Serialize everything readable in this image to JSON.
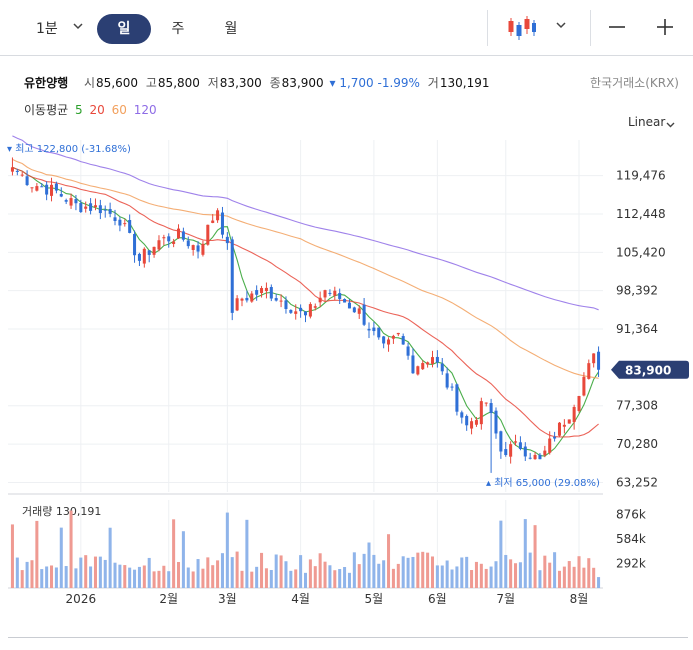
{
  "toolbar": {
    "tabs": [
      "1분",
      "일",
      "주",
      "월"
    ],
    "active_tab": "일",
    "icons": [
      "chevron-down-icon",
      "candlestick-icon",
      "zoom-out-icon",
      "zoom-in-icon"
    ]
  },
  "stock": {
    "name": "유한양행",
    "open_label": "시",
    "open": "85,600",
    "high_label": "고",
    "high": "85,800",
    "low_label": "저",
    "low": "83,300",
    "close_label": "종",
    "close": "83,900",
    "change": "▾ 1,700 -1.99%",
    "volume_label": "거",
    "volume": "130,191",
    "exchange": "한국거래소(KRX)"
  },
  "ma_legend": {
    "label": "이동평균",
    "items": [
      {
        "period": "5",
        "color": "#2ca02c"
      },
      {
        "period": "20",
        "color": "#e8483b"
      },
      {
        "period": "60",
        "color": "#f2a05d"
      },
      {
        "period": "120",
        "color": "#8e6ce6"
      }
    ]
  },
  "scale": {
    "label": "Linear"
  },
  "colors": {
    "up": "#e8483b",
    "down": "#2f6fd6",
    "accent": "#2b3f73",
    "volume_up": "#ef9a92",
    "volume_down": "#8fb4ea"
  },
  "chart_data": {
    "type": "candlestick",
    "y_ticks": [
      "119,476",
      "112,448",
      "105,420",
      "98,392",
      "91,364",
      "77,308",
      "70,280",
      "63,252"
    ],
    "y_tick_values": [
      119476,
      112448,
      105420,
      98392,
      91364,
      77308,
      70280,
      63252
    ],
    "ylim": [
      61500,
      126000
    ],
    "x_ticks": [
      "2026",
      "2월",
      "3월",
      "4월",
      "5월",
      "6월",
      "7월",
      "8월"
    ],
    "x_tick_positions": [
      14,
      32,
      44,
      59,
      74,
      87,
      101,
      116
    ],
    "n_sessions": 121,
    "current_price": {
      "label": "83,900",
      "value": 83900
    },
    "max_annotation": {
      "label": "최고 122,800 (-31.68%)",
      "value": 122800,
      "index": 0
    },
    "min_annotation": {
      "label": "최저 65,000 (29.08%)",
      "value": 65000,
      "index": 98
    },
    "close_anchors": [
      [
        0,
        121000
      ],
      [
        4,
        118000
      ],
      [
        9,
        116500
      ],
      [
        13,
        114000
      ],
      [
        18,
        113500
      ],
      [
        22,
        111500
      ],
      [
        26,
        104000
      ],
      [
        30,
        107500
      ],
      [
        34,
        108500
      ],
      [
        38,
        106000
      ],
      [
        42,
        113500
      ],
      [
        44,
        106000
      ],
      [
        45,
        95000
      ],
      [
        47,
        97000
      ],
      [
        52,
        98500
      ],
      [
        57,
        95500
      ],
      [
        60,
        93500
      ],
      [
        64,
        98500
      ],
      [
        67,
        97000
      ],
      [
        71,
        94500
      ],
      [
        76,
        87500
      ],
      [
        79,
        90000
      ],
      [
        82,
        84500
      ],
      [
        86,
        86500
      ],
      [
        90,
        79500
      ],
      [
        93,
        73500
      ],
      [
        97,
        78000
      ],
      [
        100,
        69000
      ],
      [
        104,
        70000
      ],
      [
        108,
        67000
      ],
      [
        111,
        72000
      ],
      [
        114,
        76000
      ],
      [
        117,
        82500
      ],
      [
        119,
        86000
      ],
      [
        120,
        83900
      ]
    ],
    "volume": {
      "label": "거래량",
      "value": "130,191",
      "ticks": [
        "876k",
        "584k",
        "292k"
      ],
      "tick_values": [
        876000,
        584000,
        292000
      ]
    },
    "series": [
      {
        "name": "5",
        "color": "#2ca02c"
      },
      {
        "name": "20",
        "color": "#e8483b"
      },
      {
        "name": "60",
        "color": "#f2a05d"
      },
      {
        "name": "120",
        "color": "#8e6ce6"
      }
    ]
  }
}
